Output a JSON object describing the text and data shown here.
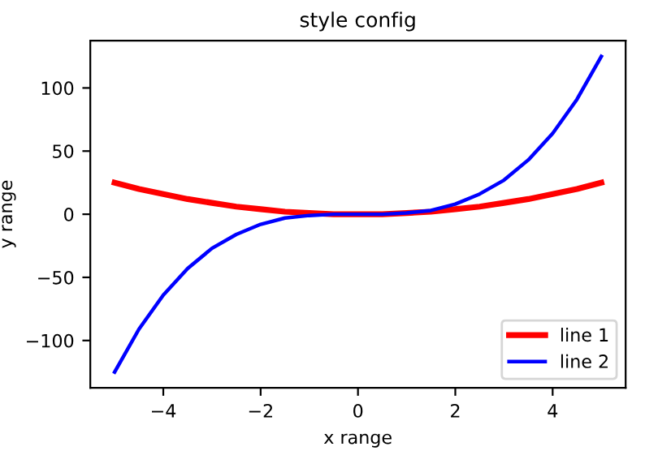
{
  "chart_data": {
    "type": "line",
    "title": "style config",
    "xlabel": "x range",
    "ylabel": "y range",
    "x": [
      -5,
      -4.5,
      -4,
      -3.5,
      -3,
      -2.5,
      -2,
      -1.5,
      -1,
      -0.5,
      0,
      0.5,
      1,
      1.5,
      2,
      2.5,
      3,
      3.5,
      4,
      4.5,
      5
    ],
    "series": [
      {
        "name": "line 1",
        "color": "#ff0000",
        "values": [
          25,
          20,
          16,
          12,
          9,
          6,
          4,
          2,
          1,
          0,
          0,
          0,
          1,
          2,
          4,
          6,
          9,
          12,
          16,
          20,
          25
        ]
      },
      {
        "name": "line 2",
        "color": "#0000ff",
        "values": [
          -125,
          -91,
          -64,
          -43,
          -27,
          -16,
          -8,
          -3,
          -1,
          0,
          0,
          0,
          1,
          3,
          8,
          16,
          27,
          43,
          64,
          91,
          125
        ]
      }
    ],
    "xlim": [
      -5.5,
      5.5
    ],
    "ylim": [
      -137.5,
      137.5
    ],
    "xticks": [
      {
        "value": -4,
        "label": "−4"
      },
      {
        "value": -2,
        "label": "−2"
      },
      0,
      2,
      4
    ],
    "yticks": [
      {
        "value": -100,
        "label": "−100"
      },
      {
        "value": -50,
        "label": "−50"
      },
      0,
      50,
      100
    ],
    "legend": "lower right",
    "grid": false,
    "marker": "none",
    "line_style": "solid"
  }
}
